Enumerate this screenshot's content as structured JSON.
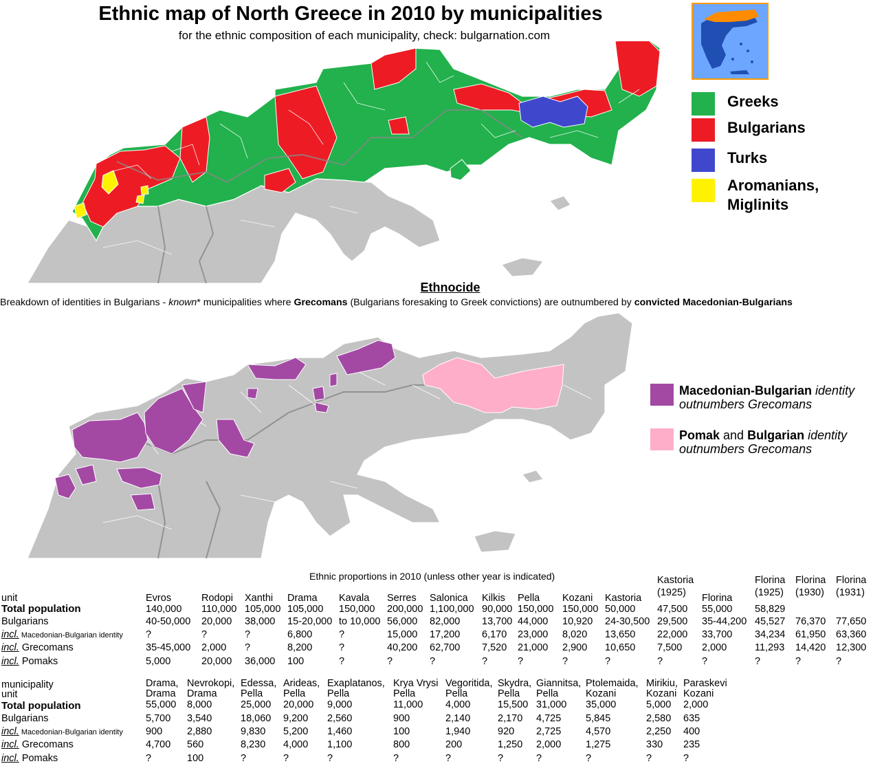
{
  "title": "Ethnic map of North Greece in 2010 by municipalities",
  "subtitle": "for the ethnic composition of each municipality, check: bulgarnation.com",
  "colors": {
    "greeks": "#22b14c",
    "bulgarians": "#ed1c24",
    "turks": "#3f48cc",
    "aromanians": "#fff200",
    "other": "#c3c3c3",
    "mac_bulgarian": "#a349a4",
    "pomak_bulgarian": "#ffaec9",
    "inset_sea": "#6da6ff",
    "inset_frame": "#ff9900"
  },
  "legend": {
    "greeks": "Greeks",
    "bulgarians": "Bulgarians",
    "turks": "Turks",
    "aromanians_line1": "Aromanians,",
    "aromanians_line2": "Miglinits"
  },
  "section2": {
    "heading": "Ethnocide",
    "text_a": "Breakdown of identities in Bulgarians - ",
    "text_known": "known",
    "text_b": "* municipalities where ",
    "text_grecomans": "Grecomans",
    "text_c": " (Bulgarians foresaking to Greek convictions) are outnumbered by ",
    "text_convicted": "convicted Macedonian-Bulgarians"
  },
  "legend2": {
    "mac_bold": "Macedonian-Bulgarian",
    "mac_italic1": " identity",
    "mac_italic2": "outnumbers Grecomans",
    "pomak_bold1": "Pomak",
    "pomak_and": " and ",
    "pomak_bold2": "Bulgarian",
    "pomak_italic1": " identity",
    "pomak_italic2": "outnumbers Grecomans"
  },
  "table1": {
    "caption": "Ethnic proportions in 2010 (unless other year is indicated)",
    "row_labels": {
      "unit": "unit",
      "total": "Total population",
      "bulgarians": "Bulgarians",
      "incl": "incl.",
      "macbg": " Macedonian-Bulgarian identity",
      "grecomans": " Grecomans",
      "pomaks": " Pomaks"
    },
    "columns": [
      {
        "unit": "Evros",
        "total": "140,000",
        "bulgarians": "40-50,000",
        "macbg": "?",
        "grecomans": "35-45,000",
        "pomaks": "5,000"
      },
      {
        "unit": "Rodopi",
        "total": "110,000",
        "bulgarians": "20,000",
        "macbg": "?",
        "grecomans": "2,000",
        "pomaks": "20,000"
      },
      {
        "unit": "Xanthi",
        "total": "105,000",
        "bulgarians": "38,000",
        "macbg": "?",
        "grecomans": "?",
        "pomaks": "36,000"
      },
      {
        "unit": "Drama",
        "total": "105,000",
        "bulgarians": "15-20,000",
        "macbg": "6,800",
        "grecomans": "8,200",
        "pomaks": "100"
      },
      {
        "unit": "Kavala",
        "total": "150,000",
        "bulgarians": "to 10,000",
        "macbg": "?",
        "grecomans": "?",
        "pomaks": "?"
      },
      {
        "unit": "Serres",
        "total": "200,000",
        "bulgarians": "56,000",
        "macbg": "15,000",
        "grecomans": "40,200",
        "pomaks": "?"
      },
      {
        "unit": "Salonica",
        "total": "1,100,000",
        "bulgarians": "82,000",
        "macbg": "17,200",
        "grecomans": "62,700",
        "pomaks": "?"
      },
      {
        "unit": "Kilkis",
        "total": "90,000",
        "bulgarians": "13,700",
        "macbg": "6,170",
        "grecomans": "7,520",
        "pomaks": "?"
      },
      {
        "unit": "Pella",
        "total": "150,000",
        "bulgarians": "44,000",
        "macbg": "23,000",
        "grecomans": "21,000",
        "pomaks": "?"
      },
      {
        "unit": "Kozani",
        "total": "150,000",
        "bulgarians": "10,920",
        "macbg": "8,020",
        "grecomans": "2,900",
        "pomaks": "?"
      },
      {
        "unit": "Kastoria",
        "total": "50,000",
        "bulgarians": "24-30,500",
        "macbg": "13,650",
        "grecomans": "10,650",
        "pomaks": "?"
      },
      {
        "unit": "Kastoria",
        "unit2": "(1925)",
        "total": "47,500",
        "bulgarians": "29,500",
        "macbg": "22,000",
        "grecomans": "7,500",
        "pomaks": "?"
      },
      {
        "unit": "Florina",
        "total": "55,000",
        "bulgarians": "35-44,200",
        "macbg": "33,700",
        "grecomans": "2,000",
        "pomaks": "?"
      },
      {
        "unit": "Florina",
        "unit2": "(1925)",
        "total": "58,829",
        "bulgarians": "45,527",
        "macbg": "34,234",
        "grecomans": "11,293",
        "pomaks": "?"
      },
      {
        "unit": "Florina",
        "unit2": "(1930)",
        "total": "",
        "bulgarians": "76,370",
        "macbg": "61,950",
        "grecomans": "14,420",
        "pomaks": "?"
      },
      {
        "unit": "Florina",
        "unit2": "(1931)",
        "total": "",
        "bulgarians": "77,650",
        "macbg": "63,360",
        "grecomans": "12,300",
        "pomaks": "?"
      }
    ]
  },
  "table2": {
    "row_labels": {
      "municipality": "municipality",
      "unit": "unit",
      "total": "Total population",
      "bulgarians": "Bulgarians",
      "incl": "incl.",
      "macbg": " Macedonian-Bulgarian identity",
      "grecomans": " Grecomans",
      "pomaks": " Pomaks"
    },
    "columns": [
      {
        "muni": "Drama,",
        "unit": "Drama",
        "total": "55,000",
        "bulgarians": "5,700",
        "macbg": "900",
        "grecomans": "4,700",
        "pomaks": "?"
      },
      {
        "muni": "Nevrokopi,",
        "unit": "Drama",
        "total": "8,000",
        "bulgarians": "3,540",
        "macbg": "2,880",
        "grecomans": "560",
        "pomaks": "100"
      },
      {
        "muni": "Edessa,",
        "unit": "Pella",
        "total": "25,000",
        "bulgarians": "18,060",
        "macbg": "9,830",
        "grecomans": "8,230",
        "pomaks": "?"
      },
      {
        "muni": "Arideas,",
        "unit": "Pella",
        "total": "20,000",
        "bulgarians": "9,200",
        "macbg": "5,200",
        "grecomans": "4,000",
        "pomaks": "?"
      },
      {
        "muni": "Exaplatanos,",
        "unit": "Pella",
        "total": "9,000",
        "bulgarians": "2,560",
        "macbg": "1,460",
        "grecomans": "1,100",
        "pomaks": "?"
      },
      {
        "muni": "Krya Vrysi",
        "unit": "Pella",
        "total": "11,000",
        "bulgarians": "900",
        "macbg": "100",
        "grecomans": "800",
        "pomaks": "?"
      },
      {
        "muni": "Vegoritida,",
        "unit": "Pella",
        "total": "4,000",
        "bulgarians": "2,140",
        "macbg": "1,940",
        "grecomans": "200",
        "pomaks": "?"
      },
      {
        "muni": "Skydra,",
        "unit": "Pella",
        "total": "15,500",
        "bulgarians": "2,170",
        "macbg": "920",
        "grecomans": "1,250",
        "pomaks": "?"
      },
      {
        "muni": "Giannitsa,",
        "unit": "Pella",
        "total": "31,000",
        "bulgarians": "4,725",
        "macbg": "2,725",
        "grecomans": "2,000",
        "pomaks": "?"
      },
      {
        "muni": "Ptolemaida,",
        "unit": "Kozani",
        "total": "35,000",
        "bulgarians": "5,845",
        "macbg": "4,570",
        "grecomans": "1,275",
        "pomaks": "?"
      },
      {
        "muni": "Mirikiu,",
        "unit": "Kozani",
        "total": "5,000",
        "bulgarians": "2,580",
        "macbg": "2,250",
        "grecomans": "330",
        "pomaks": "?"
      },
      {
        "muni": "Paraskevi",
        "unit": "Kozani",
        "total": "2,000",
        "bulgarians": "635",
        "macbg": "400",
        "grecomans": "235",
        "pomaks": "?"
      }
    ]
  }
}
